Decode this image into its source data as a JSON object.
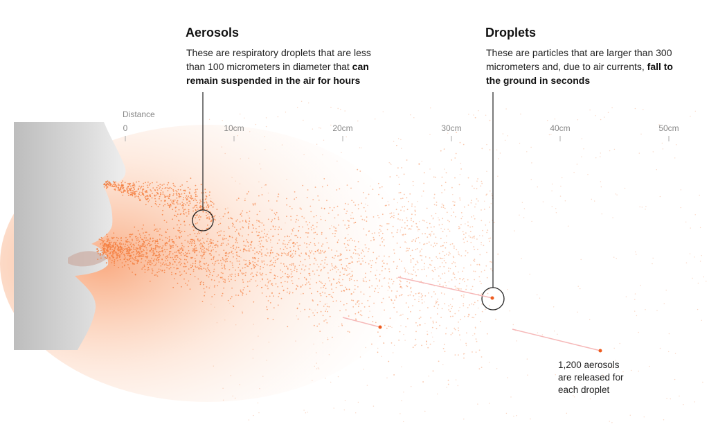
{
  "ruler": {
    "label": "Distance",
    "ticks": [
      "0",
      "10cm",
      "20cm",
      "30cm",
      "40cm",
      "50cm"
    ]
  },
  "aerosols": {
    "title": "Aerosols",
    "text": "These are respiratory droplets that are less than 100 micrometers in diameter that",
    "bold": "can remain suspended in the air for hours"
  },
  "droplets": {
    "title": "Droplets",
    "text": "These are particles that are larger than 300 micrometers and, due to air currents,",
    "bold": "fall to the ground in seconds"
  },
  "note": {
    "lines": [
      "1,200 aerosols",
      "are released for",
      "each droplet"
    ]
  }
}
